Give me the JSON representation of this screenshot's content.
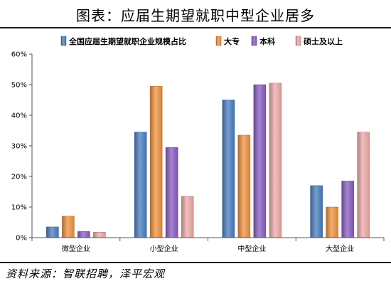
{
  "header": {
    "title": "图表：应届生期望就职中型企业居多"
  },
  "footer": {
    "source": "资料来源：智联招聘，泽平宏观"
  },
  "chart_data": {
    "type": "bar",
    "title": "",
    "xlabel": "",
    "ylabel": "",
    "categories": [
      "微型企业",
      "小型企业",
      "中型企业",
      "大型企业"
    ],
    "ylim": [
      0,
      60
    ],
    "yticks": [
      0,
      10,
      20,
      30,
      40,
      50,
      60
    ],
    "ytick_labels": [
      "0%",
      "10%",
      "20%",
      "30%",
      "40%",
      "50%",
      "60%"
    ],
    "grid": false,
    "legend_position": "top",
    "series": [
      {
        "name": "全国应届生期望就职企业规模占比",
        "values": [
          3.5,
          34.5,
          45.0,
          17.0
        ],
        "color": "#4a7ebf"
      },
      {
        "name": "大专",
        "values": [
          7.0,
          49.5,
          33.5,
          10.0
        ],
        "color": "#f0913d"
      },
      {
        "name": "本科",
        "values": [
          2.0,
          29.5,
          50.0,
          18.5
        ],
        "color": "#8a5cc2"
      },
      {
        "name": "硕士及以上",
        "values": [
          1.8,
          13.5,
          50.5,
          34.5
        ],
        "color": "#ecaaa8"
      }
    ]
  }
}
